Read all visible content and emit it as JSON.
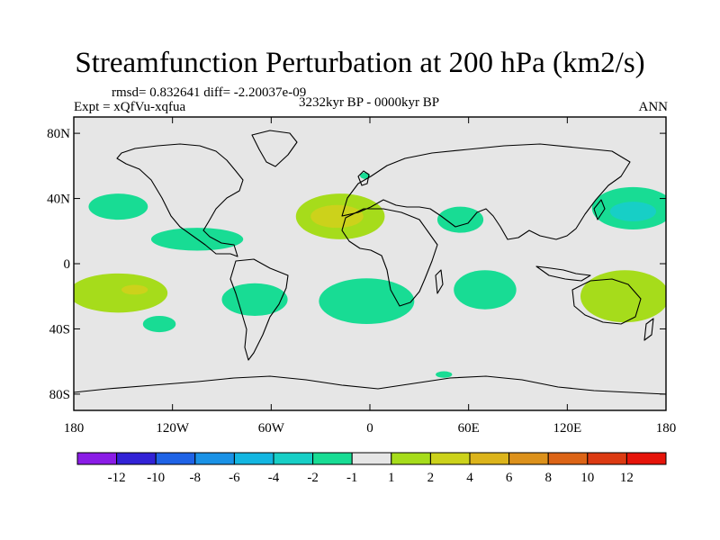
{
  "chart_data": {
    "type": "heatmap",
    "title": "Streamfunction Perturbation at 200 hPa (km2/s)",
    "stats_line": "rmsd= 0.832641 diff= -2.20037e-09",
    "experiment": "Expt = xQfVu-xqfua",
    "period": "3232kyr BP - 0000kyr BP",
    "season": "ANN",
    "projection": "cylindrical equidistant",
    "xlim": [
      -180,
      180
    ],
    "ylim": [
      -90,
      90
    ],
    "x_ticks": [
      -180,
      -120,
      -60,
      0,
      60,
      120,
      180
    ],
    "x_tick_labels": [
      "180",
      "120W",
      "60W",
      "0",
      "60E",
      "120E",
      "180"
    ],
    "y_ticks": [
      80,
      40,
      0,
      -40,
      -80
    ],
    "y_tick_labels": [
      "80N",
      "40N",
      "0",
      "40S",
      "80S"
    ],
    "colorbar": {
      "levels": [
        -12,
        -10,
        -8,
        -6,
        -4,
        -2,
        -1,
        1,
        2,
        4,
        6,
        8,
        10,
        12
      ],
      "labels": [
        "-12",
        "-10",
        "-8",
        "-6",
        "-4",
        "-2",
        "-1",
        "1",
        "2",
        "4",
        "6",
        "8",
        "10",
        "12"
      ],
      "colors": [
        "#8a1ce6",
        "#3222d6",
        "#1f63e6",
        "#1a92e6",
        "#13b6e1",
        "#17cfc6",
        "#18dc94",
        "#e6e6e6",
        "#a6dc1b",
        "#ccd21b",
        "#dcb41b",
        "#dc911b",
        "#dc6416",
        "#dc3a12",
        "#e6140a"
      ]
    },
    "regions": [
      {
        "name": "n-pacific-neg",
        "lon": -153,
        "lat": 35,
        "rx": 18,
        "ry": 8,
        "level": "-2 to -1"
      },
      {
        "name": "c-america-neg",
        "lon": -105,
        "lat": 15,
        "rx": 28,
        "ry": 7,
        "level": "-2 to -1"
      },
      {
        "name": "n-atlantic-pos",
        "lon": -18,
        "lat": 29,
        "rx": 27,
        "ry": 14,
        "level": "1 to 2"
      },
      {
        "name": "n-atlantic-pos-core",
        "lon": -20,
        "lat": 29,
        "rx": 16,
        "ry": 7,
        "level": "2 to 4"
      },
      {
        "name": "uk-neg",
        "lon": -3,
        "lat": 54,
        "rx": 3,
        "ry": 2,
        "level": "-2 to -1"
      },
      {
        "name": "arabia-neg",
        "lon": 55,
        "lat": 27,
        "rx": 14,
        "ry": 8,
        "level": "-2 to -1"
      },
      {
        "name": "nw-pacific-neg",
        "lon": 160,
        "lat": 34,
        "rx": 25,
        "ry": 13,
        "level": "-2 to -1"
      },
      {
        "name": "nw-pacific-neg-core",
        "lon": 160,
        "lat": 32,
        "rx": 14,
        "ry": 6,
        "level": "-4 to -2"
      },
      {
        "name": "s-pacific-pos",
        "lon": -153,
        "lat": -18,
        "rx": 30,
        "ry": 12,
        "level": "1 to 2"
      },
      {
        "name": "s-pacific-pos-core",
        "lon": -143,
        "lat": -16,
        "rx": 8,
        "ry": 3,
        "level": "2 to 4"
      },
      {
        "name": "s-pacific-neg",
        "lon": -128,
        "lat": -37,
        "rx": 10,
        "ry": 5,
        "level": "-2 to -1"
      },
      {
        "name": "s-america-neg",
        "lon": -70,
        "lat": -22,
        "rx": 20,
        "ry": 10,
        "level": "-2 to -1"
      },
      {
        "name": "s-atlantic-neg",
        "lon": -2,
        "lat": -23,
        "rx": 29,
        "ry": 14,
        "level": "-2 to -1"
      },
      {
        "name": "indian-neg",
        "lon": 70,
        "lat": -16,
        "rx": 19,
        "ry": 12,
        "level": "-2 to -1"
      },
      {
        "name": "australia-pos",
        "lon": 155,
        "lat": -20,
        "rx": 27,
        "ry": 16,
        "level": "1 to 2"
      },
      {
        "name": "antarctic-neg",
        "lon": 45,
        "lat": -68,
        "rx": 5,
        "ry": 2,
        "level": "-2 to -1"
      }
    ]
  }
}
